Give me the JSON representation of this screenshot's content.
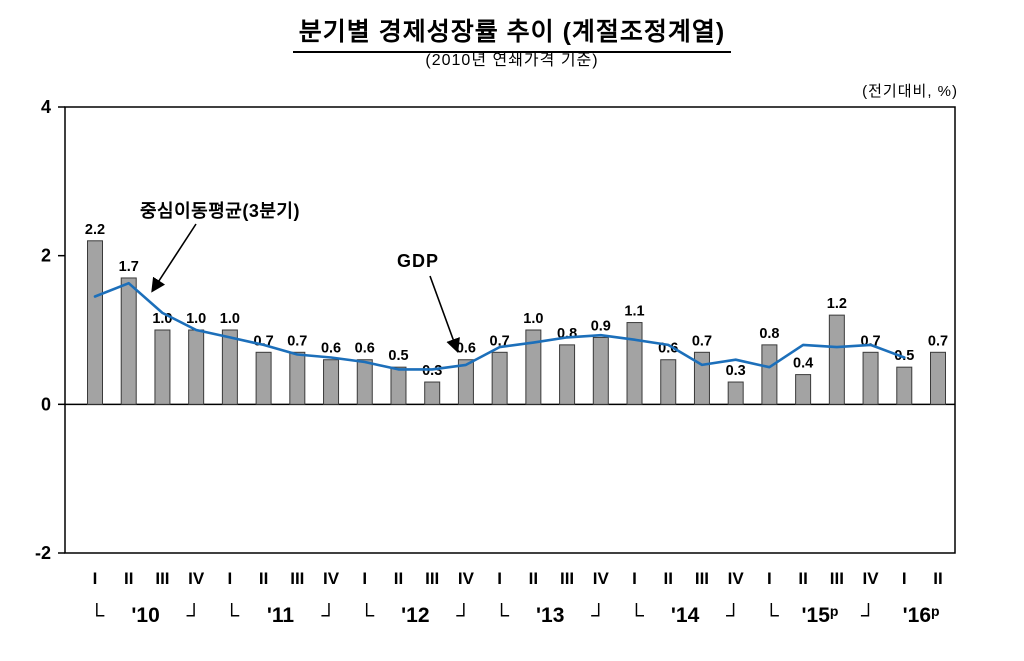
{
  "title": "분기별 경제성장률 추이 (계절조정계열)",
  "subtitle": "(2010년 연쇄가격 기준)",
  "unit_label": "(전기대비, %)",
  "annotations": {
    "ma_label": "중심이동평균(3분기)",
    "gdp_label": "GDP"
  },
  "chart_data": {
    "type": "bar",
    "title": "분기별 경제성장률 추이 (계절조정계열)",
    "subtitle": "(2010년 연쇄가격 기준)",
    "unit": "(전기대비, %)",
    "xlabel": "",
    "ylabel": "",
    "ylim": [
      -2,
      4
    ],
    "yticks": [
      4,
      2,
      0,
      -2
    ],
    "grid": false,
    "legend_position": "none",
    "categories": [
      "I",
      "II",
      "III",
      "IV",
      "I",
      "II",
      "III",
      "IV",
      "I",
      "II",
      "III",
      "IV",
      "I",
      "II",
      "III",
      "IV",
      "I",
      "II",
      "III",
      "IV",
      "I",
      "II",
      "III",
      "IV",
      "I",
      "II"
    ],
    "series": [
      {
        "name": "GDP",
        "type": "bar",
        "values": [
          2.2,
          1.7,
          1.0,
          1.0,
          1.0,
          0.7,
          0.7,
          0.6,
          0.6,
          0.5,
          0.3,
          0.6,
          0.7,
          1.0,
          0.8,
          0.9,
          1.1,
          0.6,
          0.7,
          0.3,
          0.8,
          0.4,
          1.2,
          0.7,
          0.5,
          0.7
        ]
      },
      {
        "name": "중심이동평균(3분기)",
        "type": "line",
        "values": [
          1.45,
          1.63,
          1.23,
          1.0,
          0.9,
          0.8,
          0.67,
          0.63,
          0.57,
          0.47,
          0.47,
          0.53,
          0.77,
          0.83,
          0.9,
          0.93,
          0.87,
          0.8,
          0.53,
          0.6,
          0.5,
          0.8,
          0.77,
          0.8,
          0.63
        ]
      }
    ],
    "year_groups": [
      {
        "label": "'10",
        "sup": "",
        "start": 0,
        "end": 3,
        "brackets": true
      },
      {
        "label": "'11",
        "sup": "",
        "start": 4,
        "end": 7,
        "brackets": true
      },
      {
        "label": "'12",
        "sup": "",
        "start": 8,
        "end": 11,
        "brackets": true
      },
      {
        "label": "'13",
        "sup": "",
        "start": 12,
        "end": 15,
        "brackets": true
      },
      {
        "label": "'14",
        "sup": "",
        "start": 16,
        "end": 19,
        "brackets": true
      },
      {
        "label": "'15",
        "sup": "p",
        "start": 20,
        "end": 23,
        "brackets": true
      },
      {
        "label": "'16",
        "sup": "p",
        "start": 24,
        "end": 25,
        "brackets": false
      }
    ],
    "bracket_left": "└",
    "bracket_right": "┘",
    "bar_color": "#a3a3a3",
    "bar_border_color": "#3a3a3a",
    "line_color": "#1c6fba"
  }
}
